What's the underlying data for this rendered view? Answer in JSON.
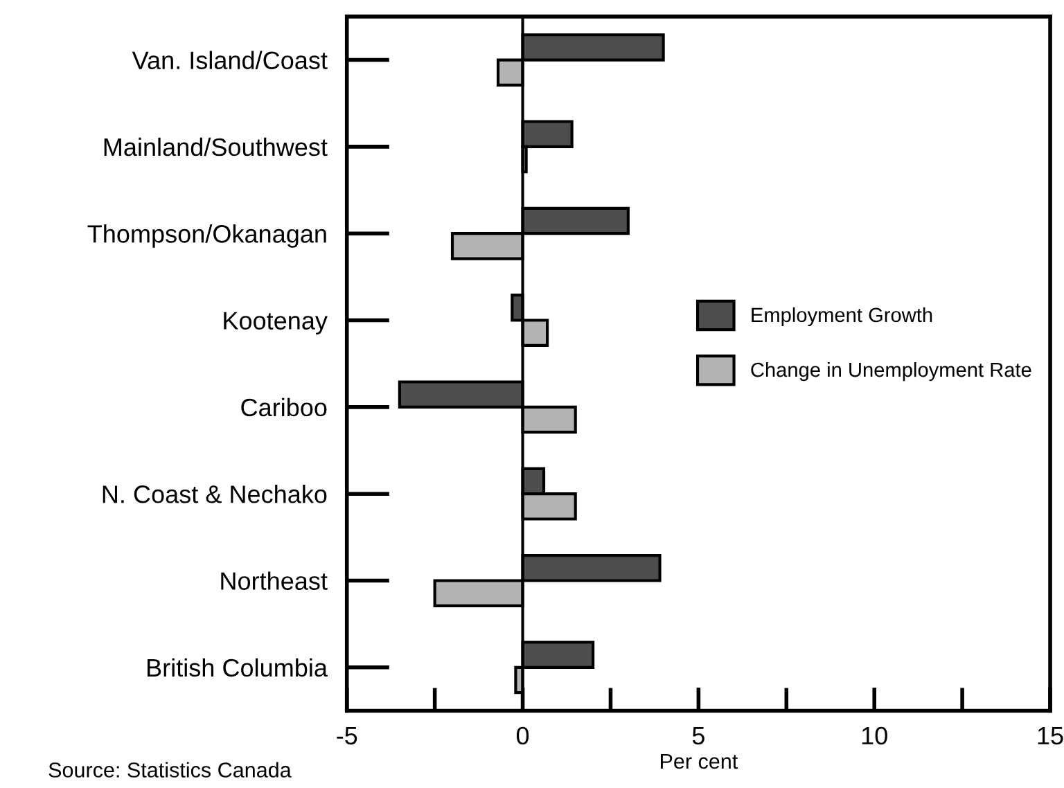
{
  "chart_data": {
    "type": "bar",
    "orientation": "horizontal",
    "xlabel": "Per cent",
    "categories": [
      "Van. Island/Coast",
      "Mainland/Southwest",
      "Thompson/Okanagan",
      "Kootenay",
      "Cariboo",
      "N. Coast & Nechako",
      "Northeast",
      "British Columbia"
    ],
    "series": [
      {
        "name": "Employment Growth",
        "color": "#4d4d4d",
        "values": [
          4.0,
          1.4,
          3.0,
          -0.3,
          -3.5,
          0.6,
          3.9,
          2.0
        ]
      },
      {
        "name": "Change in Unemployment Rate",
        "color": "#b3b3b3",
        "values": [
          -0.7,
          0.1,
          -2.0,
          0.7,
          1.5,
          1.5,
          -2.5,
          -0.2
        ]
      }
    ],
    "xlim": [
      -5,
      15
    ],
    "xticks": [
      -5,
      {
        "value": -2.5,
        "label": null
      },
      0,
      {
        "value": 2.5,
        "label": null
      },
      5,
      {
        "value": 7.5,
        "label": null
      },
      10,
      {
        "value": 12.5,
        "label": null
      },
      15
    ],
    "ref_lines": [
      {
        "axis": "x",
        "value": 0,
        "label": null,
        "color": "#000000"
      }
    ],
    "annotations": [
      "Source: Statistics Canada"
    ],
    "legend": "right",
    "grid": false
  }
}
